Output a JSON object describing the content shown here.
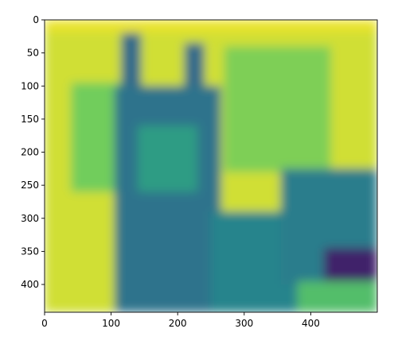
{
  "chart_data": {
    "type": "heatmap",
    "title": "",
    "xlabel": "",
    "ylabel": "",
    "colormap": "viridis",
    "colors": {
      "low": "#440154",
      "mid_low": "#3b528b",
      "mid": "#21918c",
      "mid_high": "#5ec962",
      "high": "#fde725"
    },
    "image_size": {
      "width": 500,
      "height": 442
    },
    "xlim": [
      0,
      500
    ],
    "ylim": [
      442,
      0
    ],
    "x_axis": {
      "ticks": [
        0,
        100,
        200,
        300,
        400
      ],
      "labels": [
        "0",
        "100",
        "200",
        "300",
        "400"
      ]
    },
    "y_axis": {
      "ticks": [
        0,
        50,
        100,
        150,
        200,
        250,
        300,
        350,
        400
      ],
      "labels": [
        "0",
        "50",
        "100",
        "150",
        "200",
        "250",
        "300",
        "350",
        "400"
      ]
    },
    "grid": false,
    "legend": "none",
    "regions": [
      {
        "name": "background",
        "level": 0.93,
        "bbox_data": [
          0,
          0,
          500,
          442
        ]
      },
      {
        "name": "top-band",
        "level": 0.97,
        "bbox_data": [
          0,
          0,
          500,
          18
        ]
      },
      {
        "name": "left-speckle",
        "level": 0.78,
        "bbox_data": [
          40,
          95,
          120,
          260
        ]
      },
      {
        "name": "upper-right-speckle",
        "level": 0.8,
        "bbox_data": [
          270,
          40,
          430,
          230
        ]
      },
      {
        "name": "cat-ear-left",
        "level": 0.35,
        "bbox_data": [
          115,
          20,
          145,
          110
        ]
      },
      {
        "name": "cat-ear-right",
        "level": 0.35,
        "bbox_data": [
          210,
          35,
          240,
          110
        ]
      },
      {
        "name": "cat-body",
        "level": 0.38,
        "bbox_data": [
          105,
          100,
          265,
          442
        ]
      },
      {
        "name": "cat-body-light",
        "level": 0.55,
        "bbox_data": [
          140,
          160,
          230,
          260
        ]
      },
      {
        "name": "lower-middle",
        "level": 0.45,
        "bbox_data": [
          250,
          290,
          380,
          442
        ]
      },
      {
        "name": "right-structure",
        "level": 0.42,
        "bbox_data": [
          355,
          225,
          500,
          400
        ]
      },
      {
        "name": "dark-patch",
        "level": 0.1,
        "bbox_data": [
          420,
          345,
          500,
          400
        ]
      },
      {
        "name": "bottom-right-light",
        "level": 0.7,
        "bbox_data": [
          380,
          395,
          500,
          442
        ]
      }
    ]
  }
}
